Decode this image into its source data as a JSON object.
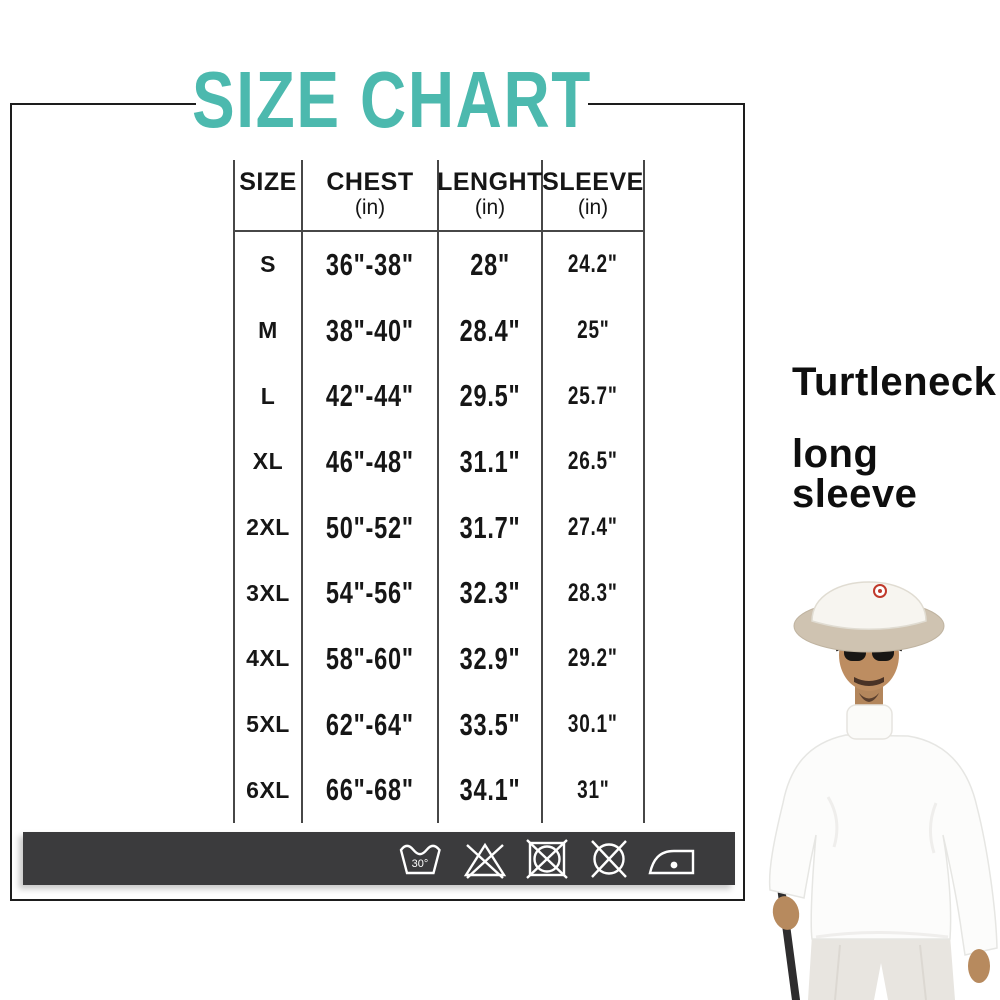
{
  "title": "SIZE CHART",
  "colors": {
    "accent": "#4cb9ae",
    "care_bar_bg": "#3b3b3d",
    "frame_border": "#1d1d1d",
    "table_line": "#474747"
  },
  "side_note": {
    "line1": "Turtleneck",
    "line2": "long sleeve"
  },
  "care_bar": {
    "wash_temp_label": "30°",
    "icons": [
      "machine-wash-30",
      "do-not-bleach",
      "do-not-tumble-dry",
      "do-not-dry-clean",
      "iron-low-heat"
    ]
  },
  "chart_data": {
    "type": "table",
    "title": "SIZE CHART",
    "columns": [
      {
        "key": "size",
        "label": "SIZE",
        "unit": ""
      },
      {
        "key": "chest",
        "label": "CHEST",
        "unit": "(in)"
      },
      {
        "key": "length",
        "label": "LENGHT",
        "unit": "(in)"
      },
      {
        "key": "sleeve",
        "label": "SLEEVE",
        "unit": "(in)"
      }
    ],
    "rows": [
      {
        "size": "S",
        "chest": "36\"-38\"",
        "length": "28\"",
        "sleeve": "24.2\""
      },
      {
        "size": "M",
        "chest": "38\"-40\"",
        "length": "28.4\"",
        "sleeve": "25\""
      },
      {
        "size": "L",
        "chest": "42\"-44\"",
        "length": "29.5\"",
        "sleeve": "25.7\""
      },
      {
        "size": "XL",
        "chest": "46\"-48\"",
        "length": "31.1\"",
        "sleeve": "26.5\""
      },
      {
        "size": "2XL",
        "chest": "50\"-52\"",
        "length": "31.7\"",
        "sleeve": "27.4\""
      },
      {
        "size": "3XL",
        "chest": "54\"-56\"",
        "length": "32.3\"",
        "sleeve": "28.3\""
      },
      {
        "size": "4XL",
        "chest": "58\"-60\"",
        "length": "32.9\"",
        "sleeve": "29.2\""
      },
      {
        "size": "5XL",
        "chest": "62\"-64\"",
        "length": "33.5\"",
        "sleeve": "30.1\""
      },
      {
        "size": "6XL",
        "chest": "66\"-68\"",
        "length": "34.1\"",
        "sleeve": "31\""
      }
    ]
  }
}
